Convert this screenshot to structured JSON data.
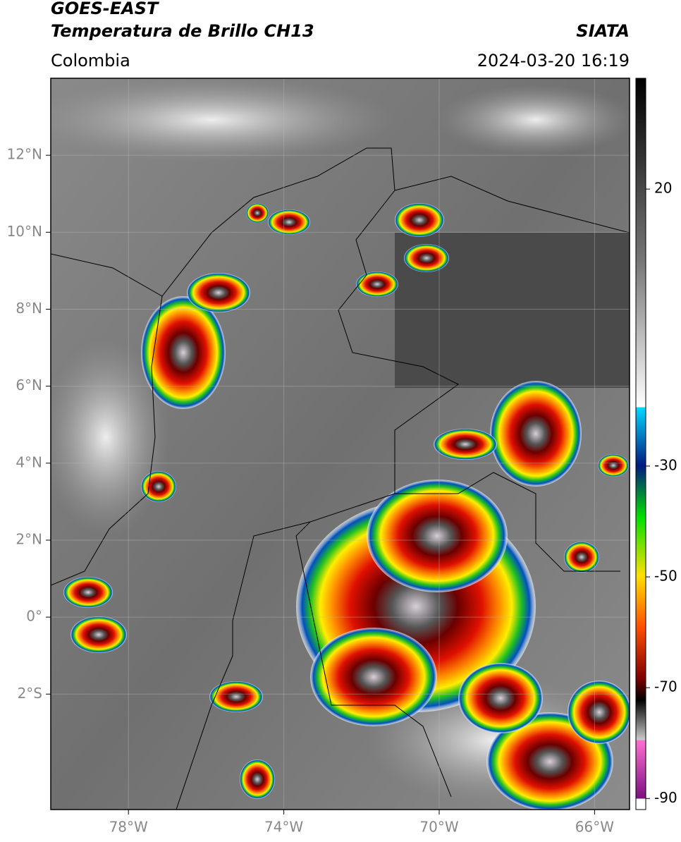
{
  "header": {
    "title": "GOES-EAST",
    "subtitle": "Temperatura de Brillo CH13",
    "region": "Colombia",
    "source": "SIATA",
    "datetime": "2024-03-20 16:19"
  },
  "map": {
    "xlim": [
      -80,
      -65.1
    ],
    "ylim": [
      -5,
      14
    ],
    "grid": true,
    "xticks": [
      {
        "value": -78,
        "label": "78°W"
      },
      {
        "value": -74,
        "label": "74°W"
      },
      {
        "value": -70,
        "label": "70°W"
      },
      {
        "value": -66,
        "label": "66°W"
      }
    ],
    "yticks": [
      {
        "value": 12,
        "label": "12°N"
      },
      {
        "value": 10,
        "label": "10°N"
      },
      {
        "value": 8,
        "label": "8°N"
      },
      {
        "value": 6,
        "label": "6°N"
      },
      {
        "value": 4,
        "label": "4°N"
      },
      {
        "value": 2,
        "label": "2°N"
      },
      {
        "value": 0,
        "label": "0°"
      },
      {
        "value": -2,
        "label": "2°S"
      }
    ]
  },
  "colorbar": {
    "lim": [
      -92,
      40
    ],
    "ticks": [
      20,
      -30,
      -50,
      -70,
      -90
    ]
  }
}
